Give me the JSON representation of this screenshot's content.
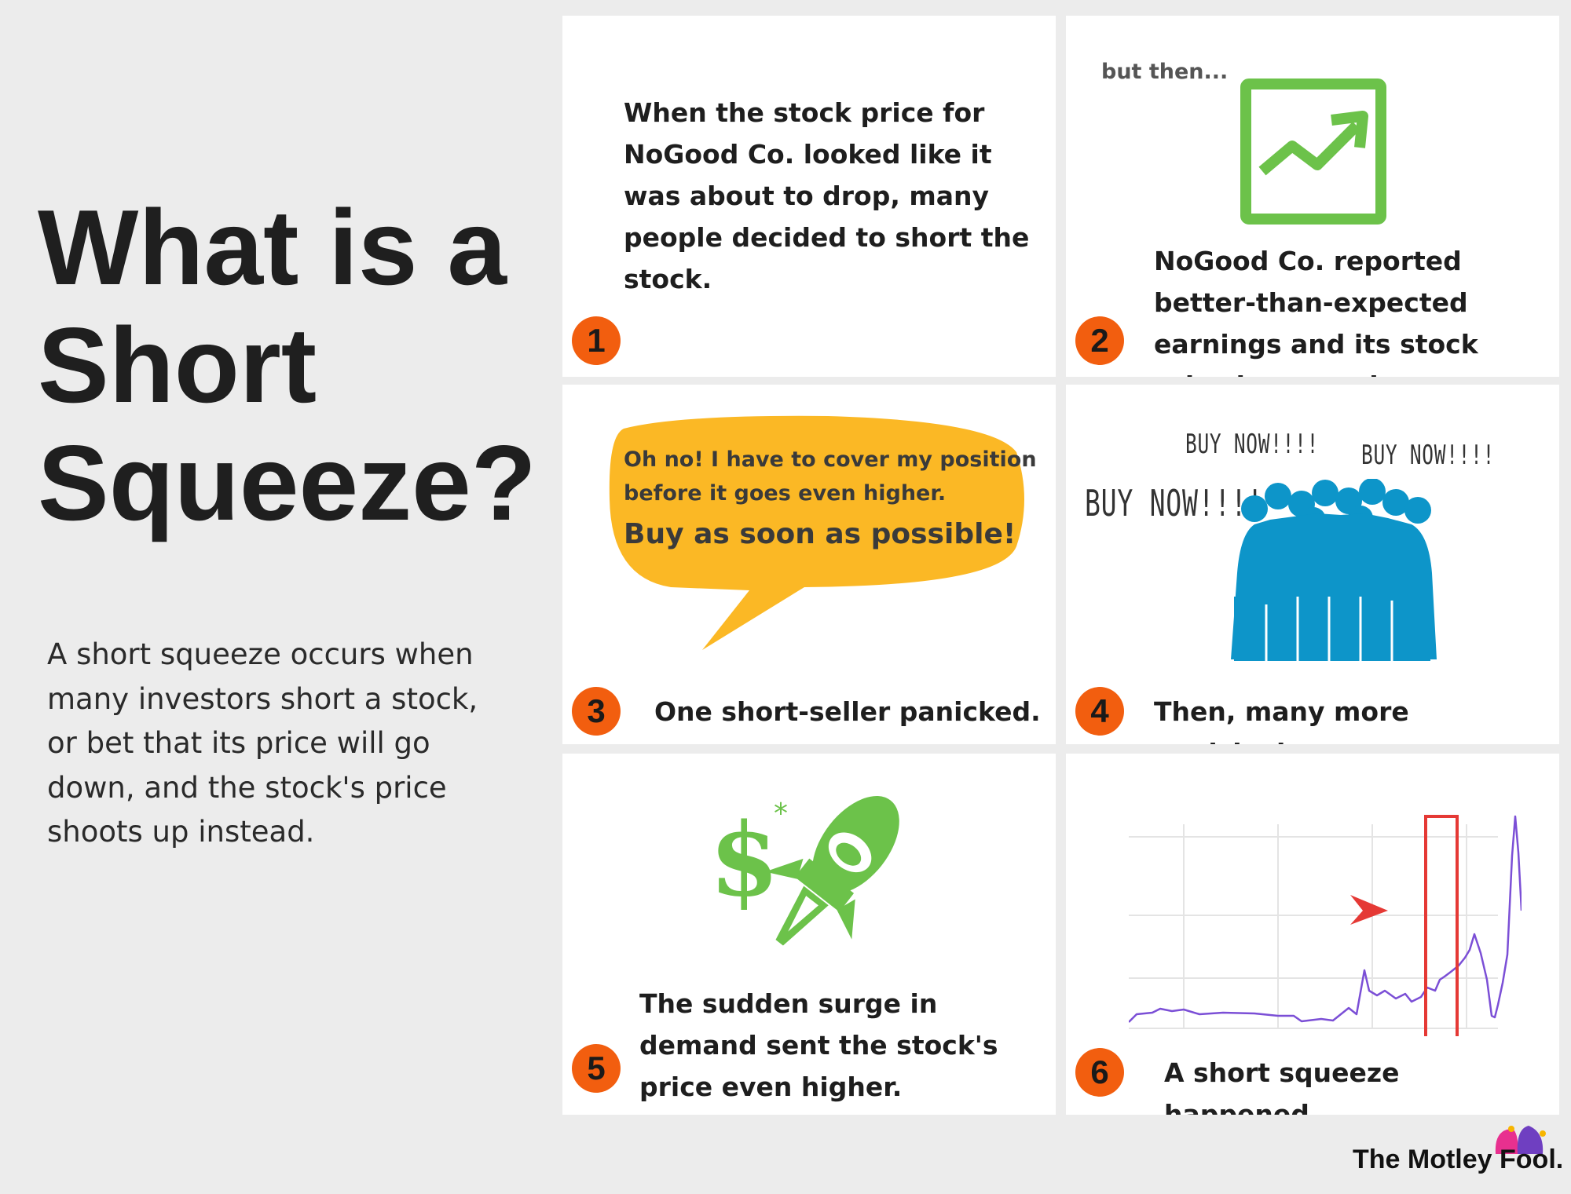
{
  "title": "What is a Short Squeeze?",
  "description": "A short squeeze occurs when many investors short a stock, or bet that its price will go down, and the stock's price shoots up instead.",
  "panels": [
    {
      "number": "1",
      "text": "When the stock price for NoGood Co. looked like it was about to drop, many people decided to short the stock."
    },
    {
      "number": "2",
      "note": "but then...",
      "text": "NoGood Co. reported better-than-expected earnings and its stock price increased."
    },
    {
      "number": "3",
      "bubble_line1": "Oh no! I have to cover my position",
      "bubble_line2": "before it goes even higher.",
      "bubble_line3": "Buy as soon as possible!",
      "text": "One short-seller panicked."
    },
    {
      "number": "4",
      "shouts": [
        "BUY NOW!!!!",
        "BUY NOW!!!!",
        "BUY NOW!!!!"
      ],
      "text": "Then, many more panicked."
    },
    {
      "number": "5",
      "text": "The sudden surge in demand sent the stock's price even higher."
    },
    {
      "number": "6",
      "text": "A short squeeze happened."
    }
  ],
  "brand": "The Motley Fool.",
  "colors": {
    "accent_orange": "#f25e0f",
    "green": "#6cc24a",
    "bubble_yellow": "#fbb825",
    "crowd_blue": "#0d95c9",
    "chart_line": "#7b4fd6",
    "highlight_red": "#e53935"
  }
}
